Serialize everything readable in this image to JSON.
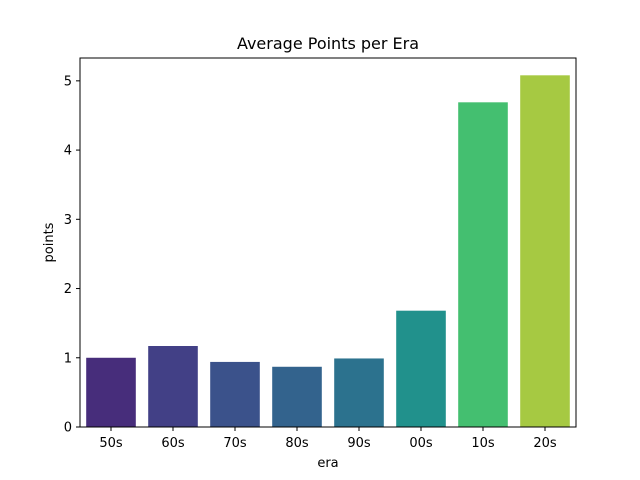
{
  "chart_data": {
    "type": "bar",
    "title": "Average Points per Era",
    "xlabel": "era",
    "ylabel": "points",
    "categories": [
      "50s",
      "60s",
      "70s",
      "80s",
      "90s",
      "00s",
      "10s",
      "20s"
    ],
    "values": [
      1.0,
      1.17,
      0.94,
      0.87,
      0.99,
      1.68,
      4.69,
      5.08
    ],
    "colors": [
      "#472d7b",
      "#424086",
      "#3b528b",
      "#33638d",
      "#2c728e",
      "#21918c",
      "#44bf70",
      "#a6c942"
    ],
    "ylim": [
      0,
      5.33
    ],
    "yticks": [
      "0",
      "1",
      "2",
      "3",
      "4",
      "5"
    ],
    "grid": false,
    "legend": "none"
  }
}
